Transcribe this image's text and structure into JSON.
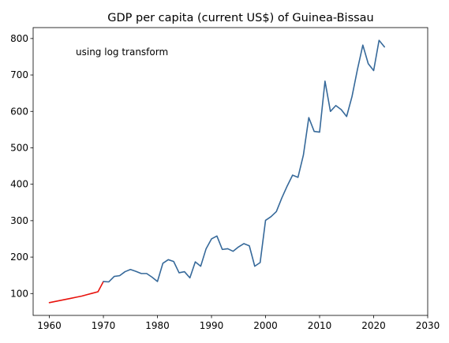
{
  "chart_data": {
    "type": "line",
    "title": "GDP per capita (current US$) of Guinea-Bissau",
    "xlabel": "",
    "ylabel": "",
    "xlim": [
      1957,
      2030
    ],
    "ylim": [
      40,
      830
    ],
    "x_ticks": [
      1960,
      1970,
      1980,
      1990,
      2000,
      2010,
      2020,
      2030
    ],
    "y_ticks": [
      100,
      200,
      300,
      400,
      500,
      600,
      700,
      800
    ],
    "grid": false,
    "annotation": "using log transform",
    "series": [
      {
        "color": "#e8120c",
        "points": [
          [
            1960,
            75
          ],
          [
            1961,
            78
          ],
          [
            1962,
            81
          ],
          [
            1963,
            84
          ],
          [
            1964,
            87
          ],
          [
            1965,
            90
          ],
          [
            1966,
            93
          ],
          [
            1967,
            97
          ],
          [
            1968,
            101
          ],
          [
            1969,
            105
          ],
          [
            1970,
            133
          ]
        ]
      },
      {
        "color": "#36699a",
        "points": [
          [
            1970,
            133
          ],
          [
            1971,
            132
          ],
          [
            1972,
            147
          ],
          [
            1973,
            149
          ],
          [
            1974,
            160
          ],
          [
            1975,
            166
          ],
          [
            1976,
            161
          ],
          [
            1977,
            155
          ],
          [
            1978,
            155
          ],
          [
            1979,
            145
          ],
          [
            1980,
            133
          ],
          [
            1981,
            183
          ],
          [
            1982,
            193
          ],
          [
            1983,
            188
          ],
          [
            1984,
            157
          ],
          [
            1985,
            160
          ],
          [
            1986,
            143
          ],
          [
            1987,
            187
          ],
          [
            1988,
            175
          ],
          [
            1989,
            223
          ],
          [
            1990,
            250
          ],
          [
            1991,
            258
          ],
          [
            1992,
            221
          ],
          [
            1993,
            223
          ],
          [
            1994,
            216
          ],
          [
            1995,
            228
          ],
          [
            1996,
            237
          ],
          [
            1997,
            231
          ],
          [
            1998,
            175
          ],
          [
            1999,
            185
          ],
          [
            2000,
            301
          ],
          [
            2001,
            311
          ],
          [
            2002,
            325
          ],
          [
            2003,
            362
          ],
          [
            2004,
            395
          ],
          [
            2005,
            425
          ],
          [
            2006,
            419
          ],
          [
            2007,
            480
          ],
          [
            2008,
            583
          ],
          [
            2009,
            545
          ],
          [
            2010,
            543
          ],
          [
            2011,
            683
          ],
          [
            2012,
            600
          ],
          [
            2013,
            616
          ],
          [
            2014,
            605
          ],
          [
            2015,
            586
          ],
          [
            2016,
            641
          ],
          [
            2017,
            715
          ],
          [
            2018,
            782
          ],
          [
            2019,
            731
          ],
          [
            2020,
            712
          ],
          [
            2021,
            795
          ],
          [
            2022,
            777
          ]
        ]
      }
    ]
  }
}
